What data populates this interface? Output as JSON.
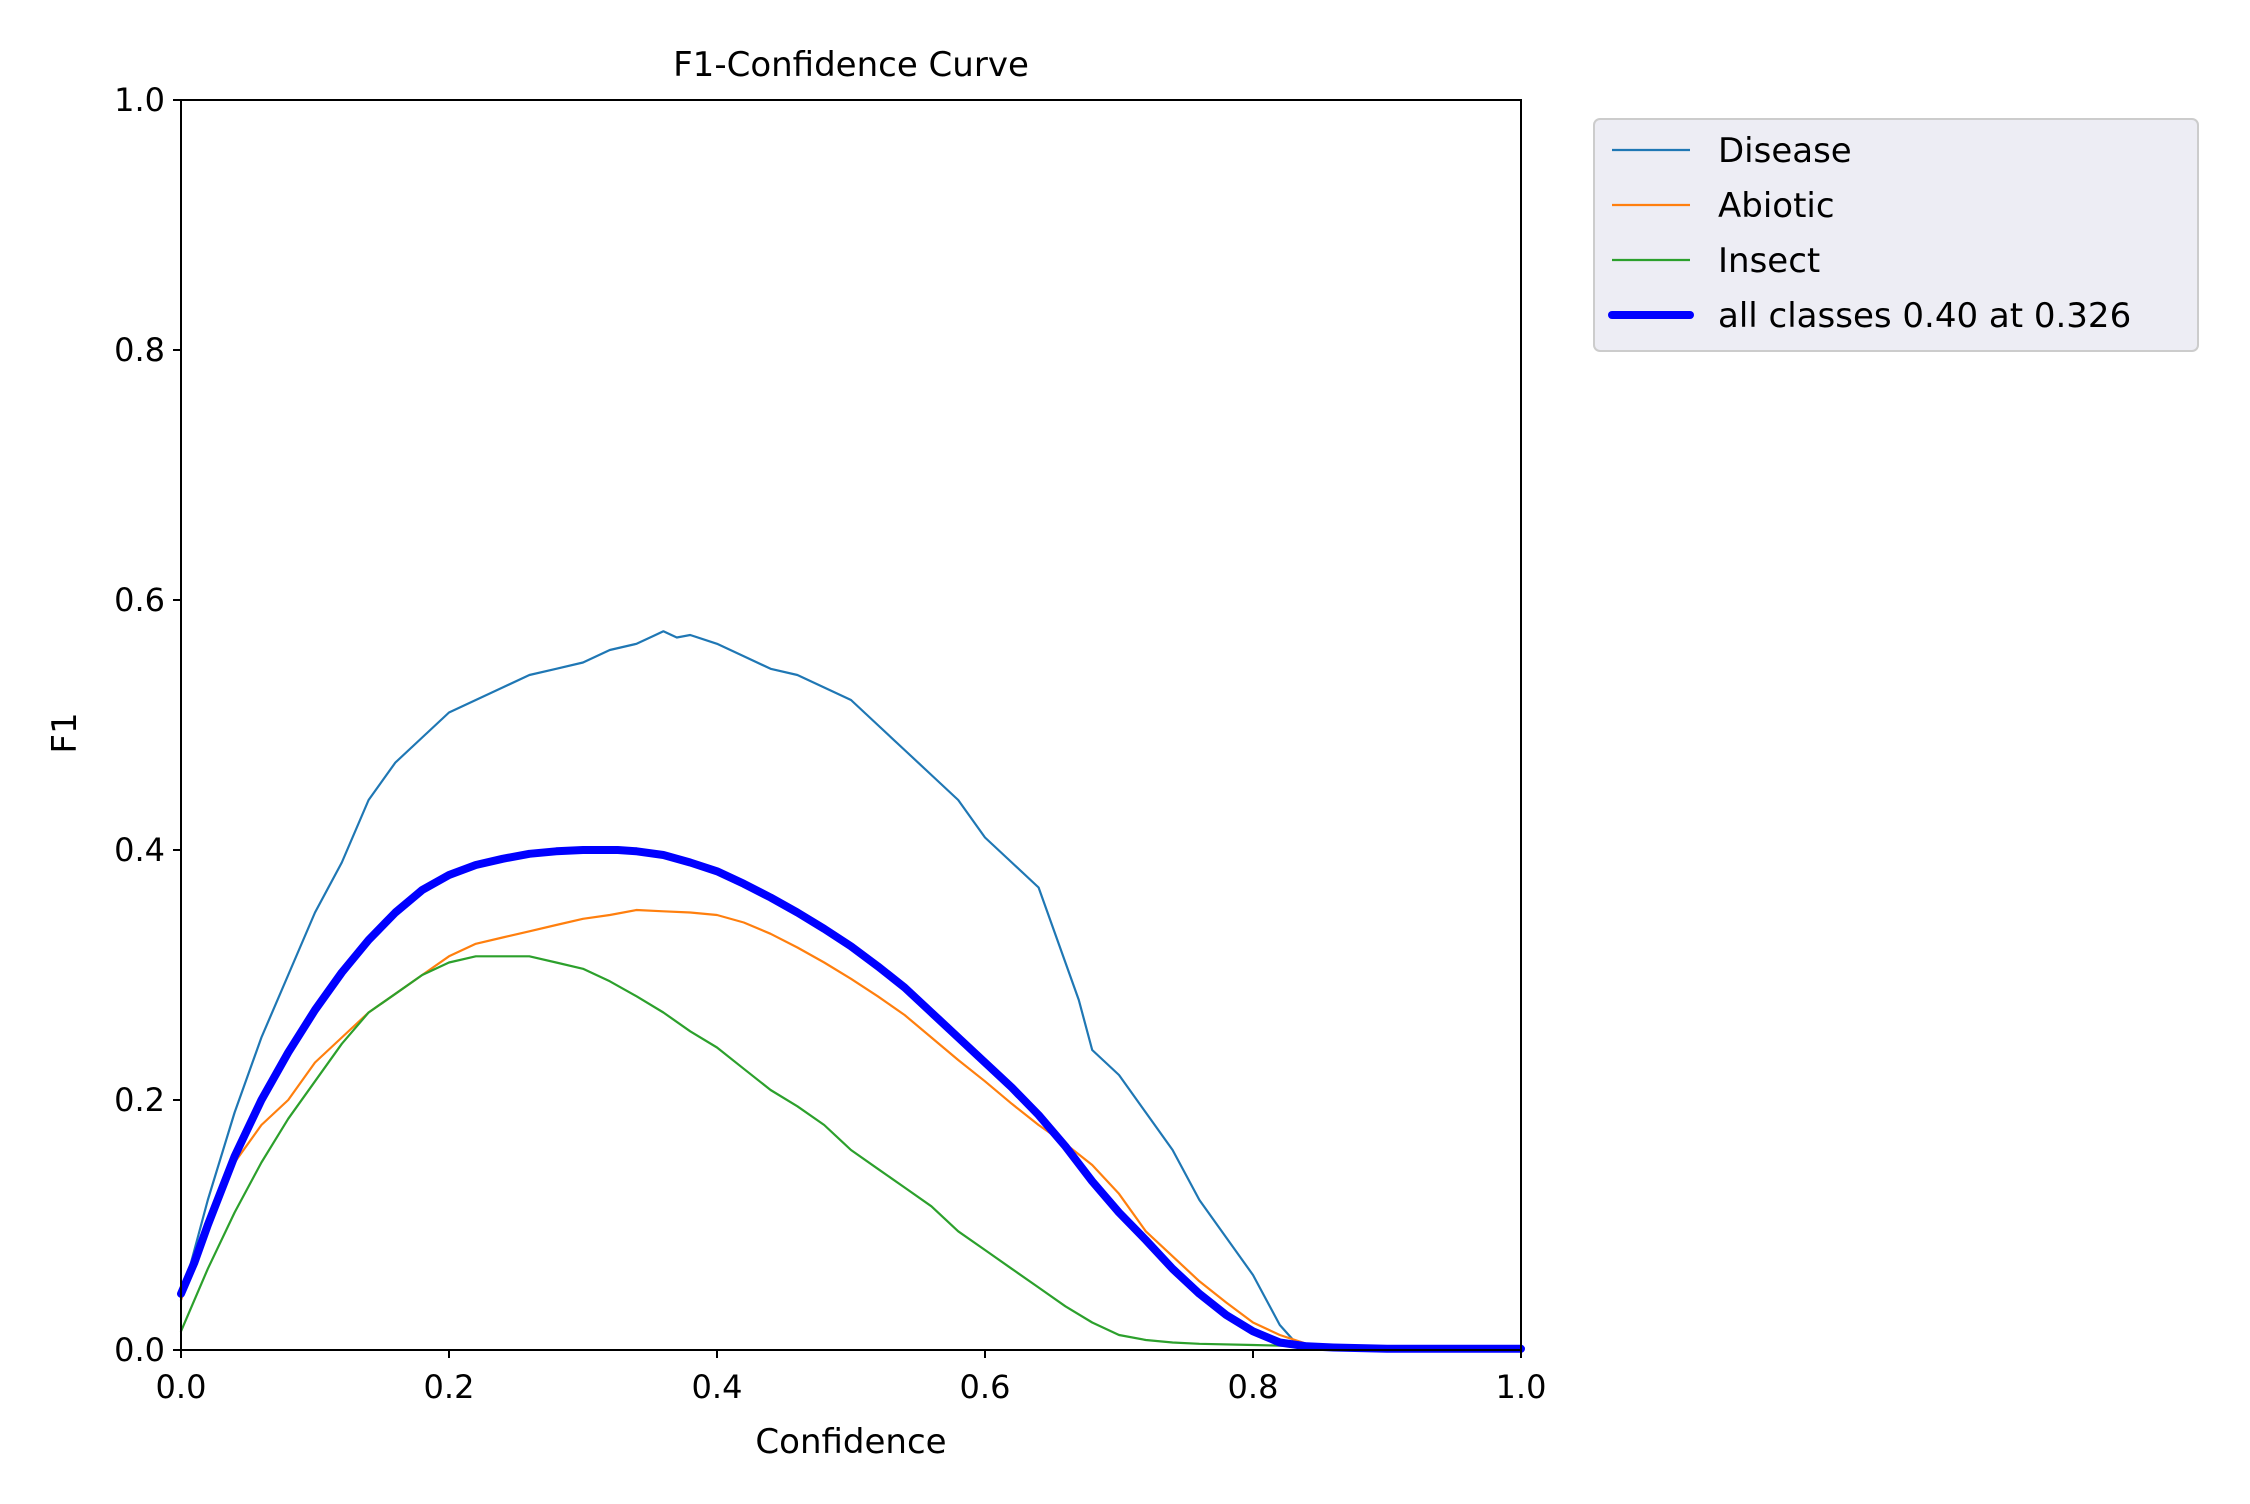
{
  "chart_data": {
    "type": "line",
    "title": "F1-Confidence Curve",
    "xlabel": "Confidence",
    "ylabel": "F1",
    "xlim": [
      0.0,
      1.0
    ],
    "ylim": [
      0.0,
      1.0
    ],
    "x_ticks": [
      "0.0",
      "0.2",
      "0.4",
      "0.6",
      "0.8",
      "1.0"
    ],
    "y_ticks": [
      "0.0",
      "0.2",
      "0.4",
      "0.6",
      "0.8",
      "1.0"
    ],
    "grid": false,
    "legend_placement": "outside-top-right",
    "series": [
      {
        "name": "Disease",
        "color": "#1f77b4",
        "x": [
          0.0,
          0.01,
          0.02,
          0.04,
          0.06,
          0.08,
          0.1,
          0.12,
          0.14,
          0.16,
          0.18,
          0.2,
          0.22,
          0.24,
          0.26,
          0.28,
          0.3,
          0.32,
          0.34,
          0.36,
          0.37,
          0.38,
          0.4,
          0.42,
          0.44,
          0.46,
          0.48,
          0.5,
          0.52,
          0.54,
          0.56,
          0.58,
          0.6,
          0.62,
          0.64,
          0.66,
          0.67,
          0.68,
          0.69,
          0.7,
          0.72,
          0.74,
          0.76,
          0.78,
          0.8,
          0.81,
          0.82,
          0.83,
          0.84,
          0.86,
          0.9,
          0.95,
          1.0
        ],
        "y": [
          0.04,
          0.08,
          0.12,
          0.19,
          0.25,
          0.3,
          0.35,
          0.39,
          0.44,
          0.47,
          0.49,
          0.51,
          0.52,
          0.53,
          0.54,
          0.545,
          0.55,
          0.56,
          0.565,
          0.575,
          0.57,
          0.572,
          0.565,
          0.555,
          0.545,
          0.54,
          0.53,
          0.52,
          0.5,
          0.48,
          0.46,
          0.44,
          0.41,
          0.39,
          0.37,
          0.31,
          0.28,
          0.24,
          0.23,
          0.22,
          0.19,
          0.16,
          0.12,
          0.09,
          0.06,
          0.04,
          0.02,
          0.008,
          0.003,
          0.002,
          0.001,
          0.001,
          0.001
        ]
      },
      {
        "name": "Abiotic",
        "color": "#ff7f0e",
        "x": [
          0.0,
          0.02,
          0.04,
          0.06,
          0.08,
          0.1,
          0.12,
          0.14,
          0.16,
          0.18,
          0.2,
          0.22,
          0.24,
          0.26,
          0.28,
          0.3,
          0.32,
          0.34,
          0.36,
          0.38,
          0.4,
          0.42,
          0.44,
          0.46,
          0.48,
          0.5,
          0.52,
          0.54,
          0.56,
          0.58,
          0.6,
          0.62,
          0.64,
          0.66,
          0.68,
          0.7,
          0.72,
          0.74,
          0.76,
          0.78,
          0.8,
          0.82,
          0.84,
          0.86,
          0.9,
          0.95,
          1.0
        ],
        "y": [
          0.04,
          0.1,
          0.15,
          0.18,
          0.2,
          0.23,
          0.25,
          0.27,
          0.285,
          0.3,
          0.315,
          0.325,
          0.33,
          0.335,
          0.34,
          0.345,
          0.348,
          0.352,
          0.351,
          0.35,
          0.348,
          0.342,
          0.333,
          0.322,
          0.31,
          0.297,
          0.283,
          0.268,
          0.25,
          0.232,
          0.215,
          0.197,
          0.18,
          0.165,
          0.148,
          0.125,
          0.095,
          0.075,
          0.055,
          0.038,
          0.022,
          0.012,
          0.005,
          0.003,
          0.002,
          0.001,
          0.001
        ]
      },
      {
        "name": "Insect",
        "color": "#2ca02c",
        "x": [
          0.0,
          0.02,
          0.04,
          0.06,
          0.08,
          0.1,
          0.12,
          0.14,
          0.16,
          0.18,
          0.2,
          0.22,
          0.24,
          0.26,
          0.28,
          0.3,
          0.32,
          0.34,
          0.36,
          0.38,
          0.4,
          0.42,
          0.44,
          0.46,
          0.48,
          0.5,
          0.52,
          0.54,
          0.56,
          0.58,
          0.6,
          0.62,
          0.64,
          0.66,
          0.68,
          0.7,
          0.72,
          0.74,
          0.76,
          0.8,
          0.84,
          0.9,
          0.95,
          1.0
        ],
        "y": [
          0.015,
          0.065,
          0.11,
          0.15,
          0.185,
          0.215,
          0.245,
          0.27,
          0.285,
          0.3,
          0.31,
          0.315,
          0.315,
          0.315,
          0.31,
          0.305,
          0.295,
          0.283,
          0.27,
          0.255,
          0.242,
          0.225,
          0.208,
          0.195,
          0.18,
          0.16,
          0.145,
          0.13,
          0.115,
          0.095,
          0.08,
          0.065,
          0.05,
          0.035,
          0.022,
          0.012,
          0.008,
          0.006,
          0.005,
          0.004,
          0.003,
          0.002,
          0.001,
          0.001
        ]
      },
      {
        "name": "all classes 0.40 at 0.326",
        "color": "#0000ff",
        "x": [
          0.0,
          0.01,
          0.02,
          0.04,
          0.06,
          0.08,
          0.1,
          0.12,
          0.14,
          0.16,
          0.18,
          0.2,
          0.22,
          0.24,
          0.26,
          0.28,
          0.3,
          0.326,
          0.34,
          0.36,
          0.38,
          0.4,
          0.42,
          0.44,
          0.46,
          0.48,
          0.5,
          0.52,
          0.54,
          0.56,
          0.58,
          0.6,
          0.62,
          0.64,
          0.66,
          0.68,
          0.7,
          0.72,
          0.74,
          0.76,
          0.78,
          0.8,
          0.82,
          0.84,
          0.86,
          0.9,
          0.95,
          1.0
        ],
        "y": [
          0.045,
          0.07,
          0.1,
          0.155,
          0.2,
          0.238,
          0.272,
          0.302,
          0.328,
          0.35,
          0.368,
          0.38,
          0.388,
          0.393,
          0.397,
          0.399,
          0.4,
          0.4,
          0.399,
          0.396,
          0.39,
          0.383,
          0.373,
          0.362,
          0.35,
          0.337,
          0.323,
          0.307,
          0.29,
          0.27,
          0.25,
          0.23,
          0.21,
          0.188,
          0.163,
          0.135,
          0.11,
          0.088,
          0.065,
          0.045,
          0.028,
          0.015,
          0.006,
          0.003,
          0.002,
          0.001,
          0.001,
          0.001
        ]
      }
    ]
  }
}
